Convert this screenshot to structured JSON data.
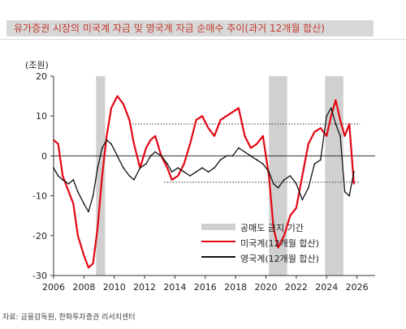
{
  "title": "유가증권 시장의 미국계 자금 및 영국계 자금 순매수 추이(과거 12개월 합산)",
  "unit": "(조원)",
  "source": "자료: 금융감독원, 한화투자증권 리서치센터",
  "colors": {
    "us": "#e30613",
    "uk": "#111111",
    "ban": "#d0d0d0",
    "title": "#c0392b"
  },
  "legend": {
    "ban": "공매도 금지 기간",
    "us": "미국계(12개월 합산)",
    "uk": "영국계(12개월 합산)"
  },
  "chart_data": {
    "type": "line",
    "xlim": [
      2006,
      2027.2
    ],
    "ylim": [
      -30,
      20
    ],
    "y_ticks": [
      20,
      10,
      0,
      -10,
      -20,
      -30
    ],
    "x_ticks": [
      2006,
      2008,
      2010,
      2012,
      2014,
      2016,
      2018,
      2020,
      2022,
      2024,
      2026
    ],
    "short_selling_ban_periods": [
      [
        2008.8,
        2009.4
      ],
      [
        2020.2,
        2021.4
      ],
      [
        2023.9,
        2025.1
      ]
    ],
    "reference_lines": [
      {
        "y": 8,
        "x_from": 2011.0,
        "x_to": 2026.2,
        "style": "dotted"
      },
      {
        "y": -6.6,
        "x_from": 2013.3,
        "x_to": 2026.2,
        "style": "dotted"
      }
    ],
    "series": [
      {
        "name": "미국계(12개월 합산)",
        "x": [
          2006.0,
          2006.3,
          2006.6,
          2007.0,
          2007.3,
          2007.6,
          2008.0,
          2008.3,
          2008.6,
          2008.9,
          2009.2,
          2009.5,
          2009.8,
          2010.2,
          2010.6,
          2011.0,
          2011.3,
          2011.7,
          2012.1,
          2012.4,
          2012.7,
          2013.1,
          2013.5,
          2013.8,
          2014.2,
          2014.6,
          2015.0,
          2015.4,
          2015.8,
          2016.2,
          2016.6,
          2017.0,
          2017.4,
          2017.8,
          2018.2,
          2018.6,
          2019.0,
          2019.4,
          2019.8,
          2020.2,
          2020.5,
          2020.8,
          2021.2,
          2021.6,
          2022.0,
          2022.4,
          2022.8,
          2023.2,
          2023.6,
          2024.0,
          2024.3,
          2024.6,
          2024.9,
          2025.2,
          2025.5,
          2025.8
        ],
        "values": [
          4,
          3,
          -5,
          -9,
          -12,
          -20,
          -25,
          -28,
          -27,
          -18,
          -5,
          5,
          12,
          15,
          13,
          9,
          3,
          -3,
          2,
          4,
          5,
          0,
          -3,
          -6,
          -5,
          -2,
          3,
          9,
          10,
          7,
          5,
          9,
          10,
          11,
          12,
          5,
          2,
          3,
          5,
          -5,
          -18,
          -23,
          -20,
          -15,
          -13,
          -5,
          3,
          6,
          7,
          5,
          10,
          14,
          9,
          5,
          8,
          -7
        ]
      },
      {
        "name": "영국계(12개월 합산)",
        "x": [
          2006.0,
          2006.3,
          2006.6,
          2007.0,
          2007.3,
          2007.6,
          2008.0,
          2008.3,
          2008.6,
          2008.9,
          2009.2,
          2009.5,
          2009.8,
          2010.2,
          2010.6,
          2011.0,
          2011.3,
          2011.7,
          2012.1,
          2012.4,
          2012.7,
          2013.1,
          2013.5,
          2013.8,
          2014.2,
          2014.6,
          2015.0,
          2015.4,
          2015.8,
          2016.2,
          2016.6,
          2017.0,
          2017.4,
          2017.8,
          2018.2,
          2018.6,
          2019.0,
          2019.4,
          2019.8,
          2020.2,
          2020.5,
          2020.8,
          2021.2,
          2021.6,
          2022.0,
          2022.4,
          2022.8,
          2023.2,
          2023.6,
          2024.0,
          2024.3,
          2024.6,
          2024.9,
          2025.2,
          2025.5,
          2025.8
        ],
        "values": [
          -3,
          -5,
          -6,
          -7,
          -6,
          -9,
          -12,
          -14,
          -10,
          -3,
          2,
          4,
          3,
          0,
          -3,
          -5,
          -6,
          -3,
          -2,
          0,
          1,
          0,
          -2,
          -4,
          -3,
          -4,
          -5,
          -4,
          -3,
          -4,
          -3,
          -1,
          0,
          0,
          2,
          1,
          0,
          -1,
          -2,
          -4,
          -7,
          -8,
          -6,
          -5,
          -7,
          -11,
          -8,
          -2,
          -1,
          10,
          12,
          8,
          5,
          -9,
          -10,
          -4
        ]
      }
    ]
  }
}
